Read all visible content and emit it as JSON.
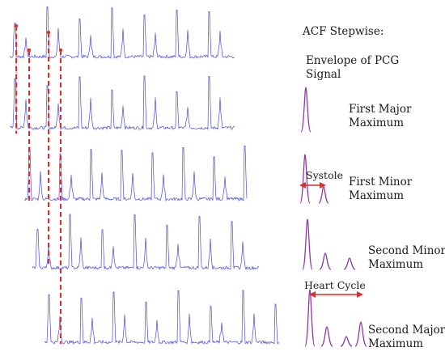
{
  "heading": "ACF Stepwise:",
  "steps": [
    {
      "line1": "Envelope of PCG",
      "line2": "Signal"
    },
    {
      "line1": "First Major",
      "line2": "Maximum"
    },
    {
      "line1": "First Minor",
      "line2": "Maximum"
    },
    {
      "line1": "Second Minor",
      "line2": "Maximum"
    },
    {
      "line1": "Second Major",
      "line2": "Maximum"
    }
  ],
  "annotations": {
    "systole": "Systole",
    "heart_cycle": "Heart Cycle"
  },
  "colors": {
    "signal": "#4a4ad8",
    "envelope": "#8a3aa6",
    "marker": "#e32b2b",
    "text": "#1a1a1a"
  }
}
